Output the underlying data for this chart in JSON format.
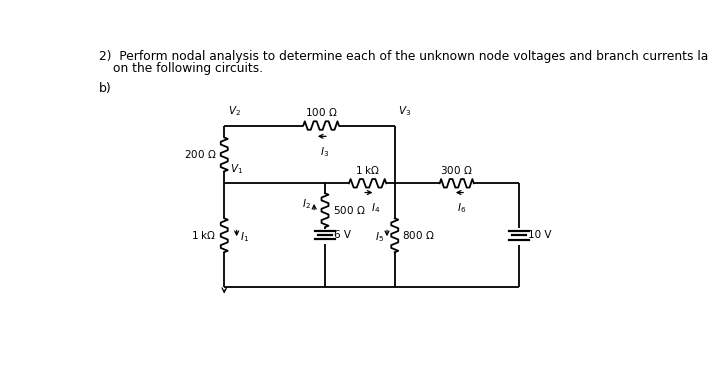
{
  "title_line1": "2)  Perform nodal analysis to determine each of the unknown node voltages and branch currents labeled",
  "title_line2": "on the following circuits.",
  "subtitle": "b)",
  "text_color": "#000000",
  "bg_color": "#ffffff",
  "fig_width": 7.09,
  "fig_height": 3.66
}
